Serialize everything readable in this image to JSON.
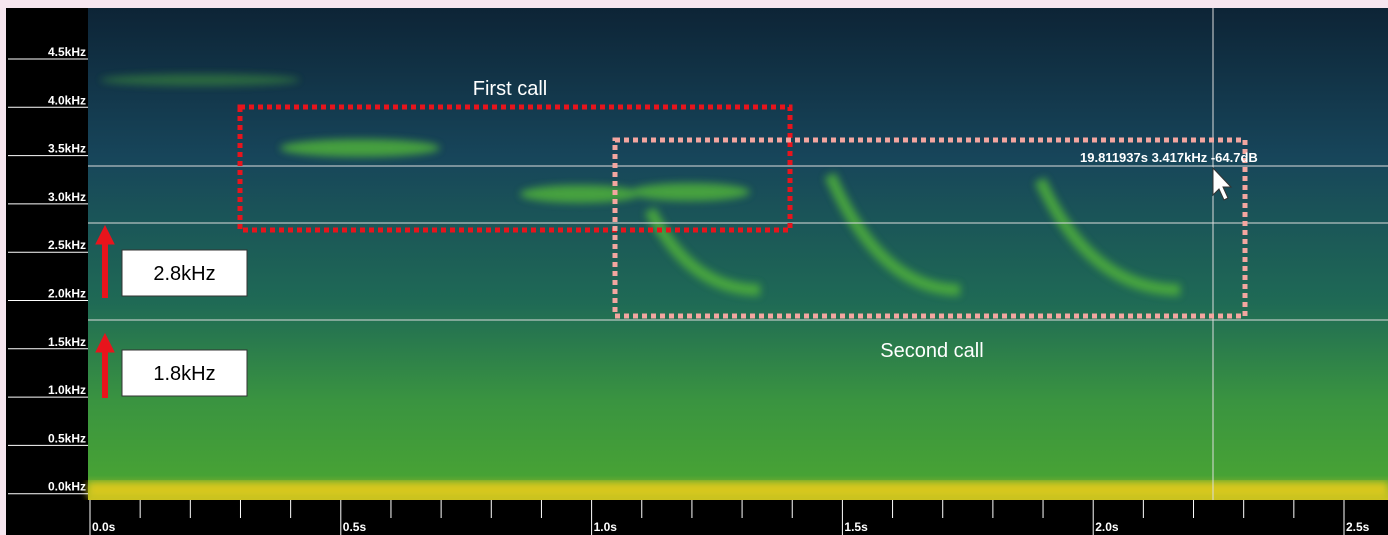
{
  "y_axis": {
    "tick_labels": [
      "4.5kHz",
      "4.0kHz",
      "3.5kHz",
      "3.0kHz",
      "2.5kHz",
      "2.0kHz",
      "1.5kHz",
      "1.0kHz",
      "0.5kHz",
      "0.0kHz"
    ]
  },
  "x_axis": {
    "tick_labels": [
      "0.0s",
      "0.5s",
      "1.0s",
      "1.5s",
      "2.0s",
      "2.5s"
    ]
  },
  "cursor_readout": "19.811937s 3.417kHz -64.7dB",
  "annotations": {
    "first_call": "First call",
    "second_call": "Second call",
    "markers": [
      "2.8kHz",
      "1.8kHz"
    ]
  }
}
